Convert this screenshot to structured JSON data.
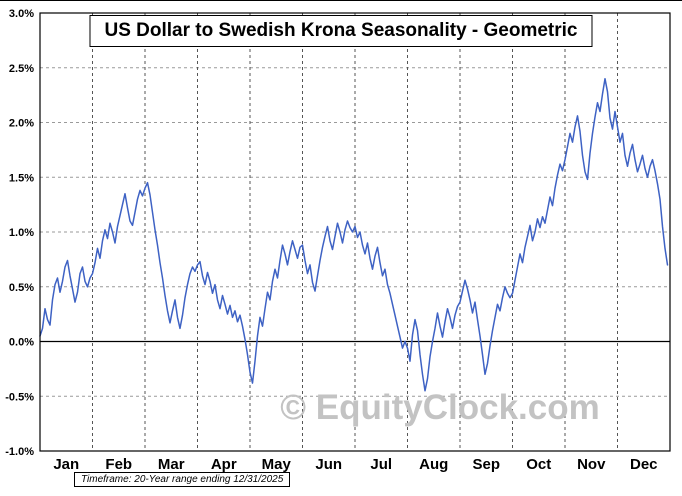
{
  "page": {
    "title": "US Dollar to Swedish Krona Seasonality - Geometric",
    "watermark": "© EquityClock.com",
    "footer_note": "Timeframe: 20-Year range ending 12/31/2025"
  },
  "chart_data": {
    "type": "line",
    "title": "US Dollar to Swedish Krona Seasonality - Geometric",
    "xlabel": "",
    "ylabel": "",
    "x_axis": {
      "tick_labels": [
        "Jan",
        "Feb",
        "Mar",
        "Apr",
        "May",
        "Jun",
        "Jul",
        "Aug",
        "Sep",
        "Oct",
        "Nov",
        "Dec"
      ],
      "range_months": [
        0,
        12
      ]
    },
    "y_axis": {
      "min": -1.0,
      "max": 3.0,
      "tick_step": 0.5,
      "unit": "percent",
      "tick_labels": [
        "3.0%",
        "2.5%",
        "2.0%",
        "1.5%",
        "1.0%",
        "0.5%",
        "0.0%",
        "-0.5%",
        "-1.0%"
      ]
    },
    "grid": {
      "horizontal": "dashed",
      "vertical": "dashed-month-boundaries",
      "zero_line": "solid"
    },
    "legend": "none",
    "colors": {
      "line": "#3E62C4",
      "grid_horizontal": "#9a9a9a",
      "grid_vertical": "#555555",
      "zero_line": "#000000",
      "watermark": "#c3c3c3",
      "border": "#000000"
    },
    "series": [
      {
        "name": "USD/SEK 20-year geometric seasonality (% change)",
        "x_start": 0,
        "x_step": 0.047619,
        "x_unit": "months",
        "color": "#3E62C4",
        "values": [
          0.05,
          0.12,
          0.3,
          0.2,
          0.15,
          0.38,
          0.52,
          0.58,
          0.45,
          0.55,
          0.68,
          0.74,
          0.6,
          0.48,
          0.36,
          0.45,
          0.62,
          0.68,
          0.55,
          0.5,
          0.58,
          0.62,
          0.72,
          0.85,
          0.76,
          0.92,
          1.02,
          0.94,
          1.08,
          1.0,
          0.9,
          1.05,
          1.15,
          1.25,
          1.35,
          1.22,
          1.1,
          1.06,
          1.18,
          1.3,
          1.38,
          1.33,
          1.4,
          1.45,
          1.34,
          1.18,
          1.02,
          0.88,
          0.72,
          0.58,
          0.42,
          0.28,
          0.17,
          0.28,
          0.38,
          0.22,
          0.12,
          0.24,
          0.4,
          0.52,
          0.62,
          0.68,
          0.64,
          0.7,
          0.73,
          0.6,
          0.52,
          0.63,
          0.55,
          0.44,
          0.52,
          0.38,
          0.3,
          0.42,
          0.34,
          0.25,
          0.33,
          0.22,
          0.28,
          0.18,
          0.24,
          0.14,
          0.02,
          -0.12,
          -0.28,
          -0.38,
          -0.18,
          0.05,
          0.22,
          0.14,
          0.3,
          0.45,
          0.38,
          0.55,
          0.66,
          0.58,
          0.74,
          0.88,
          0.8,
          0.7,
          0.82,
          0.92,
          0.84,
          0.76,
          0.86,
          0.88,
          0.74,
          0.62,
          0.7,
          0.54,
          0.46,
          0.6,
          0.74,
          0.86,
          0.96,
          1.05,
          0.92,
          0.84,
          0.96,
          1.08,
          1.0,
          0.9,
          1.02,
          1.1,
          1.04,
          1.0,
          1.05,
          0.95,
          1.0,
          0.88,
          0.8,
          0.9,
          0.76,
          0.66,
          0.78,
          0.86,
          0.72,
          0.6,
          0.66,
          0.52,
          0.44,
          0.34,
          0.24,
          0.14,
          0.04,
          -0.06,
          0.0,
          -0.06,
          -0.18,
          0.06,
          0.2,
          0.1,
          -0.12,
          -0.3,
          -0.45,
          -0.34,
          -0.14,
          0.0,
          0.12,
          0.26,
          0.14,
          0.04,
          0.18,
          0.3,
          0.22,
          0.12,
          0.24,
          0.32,
          0.36,
          0.46,
          0.56,
          0.48,
          0.38,
          0.26,
          0.36,
          0.2,
          0.05,
          -0.12,
          -0.3,
          -0.2,
          -0.04,
          0.1,
          0.22,
          0.34,
          0.28,
          0.4,
          0.5,
          0.44,
          0.4,
          0.44,
          0.56,
          0.68,
          0.8,
          0.72,
          0.86,
          0.96,
          1.06,
          0.92,
          1.0,
          1.12,
          1.04,
          1.14,
          1.08,
          1.2,
          1.32,
          1.24,
          1.4,
          1.52,
          1.62,
          1.56,
          1.66,
          1.78,
          1.9,
          1.82,
          1.96,
          2.06,
          1.92,
          1.7,
          1.55,
          1.48,
          1.72,
          1.9,
          2.05,
          2.18,
          2.1,
          2.26,
          2.4,
          2.28,
          2.04,
          1.94,
          2.1,
          1.96,
          1.82,
          1.9,
          1.7,
          1.6,
          1.72,
          1.8,
          1.66,
          1.55,
          1.62,
          1.7,
          1.58,
          1.5,
          1.6,
          1.66,
          1.56,
          1.44,
          1.3,
          1.05,
          0.85,
          0.7
        ]
      }
    ]
  }
}
